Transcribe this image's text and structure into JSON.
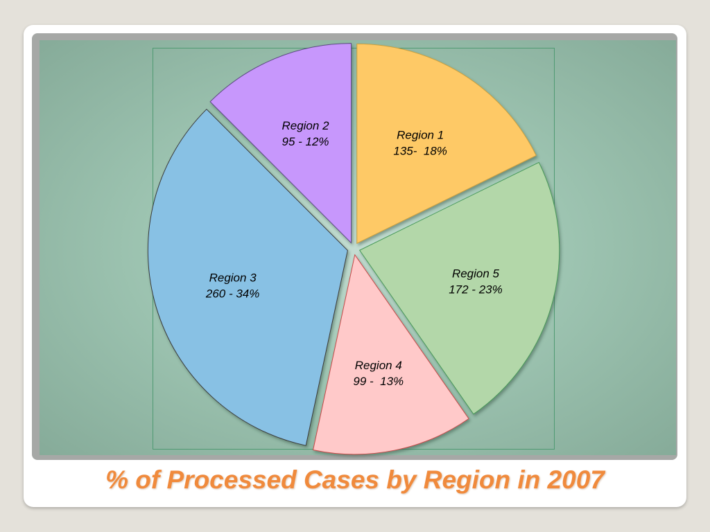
{
  "title": "% of Processed Cases by Region in 2007",
  "chart_data": {
    "type": "pie",
    "title": "% of Processed Cases by Region in 2007",
    "slices": [
      {
        "name": "Region 1",
        "value": 135,
        "percent": 18,
        "label_line2": "135-  18%",
        "color": "#fec966",
        "stroke": "#c8a040"
      },
      {
        "name": "Region 5",
        "value": 172,
        "percent": 23,
        "label_line2": "172 - 23%",
        "color": "#b3d7a9",
        "stroke": "#4a9a5a"
      },
      {
        "name": "Region 4",
        "value": 99,
        "percent": 13,
        "label_line2": "99 -  13%",
        "color": "#ffc9c9",
        "stroke": "#c84a4a"
      },
      {
        "name": "Region 3",
        "value": 260,
        "percent": 34,
        "label_line2": "260 - 34%",
        "color": "#88c1e4",
        "stroke": "#3a3a3a"
      },
      {
        "name": "Region 2",
        "value": 95,
        "percent": 12,
        "label_line2": "95 - 12%",
        "color": "#c797fc",
        "stroke": "#5a4a80"
      }
    ]
  }
}
